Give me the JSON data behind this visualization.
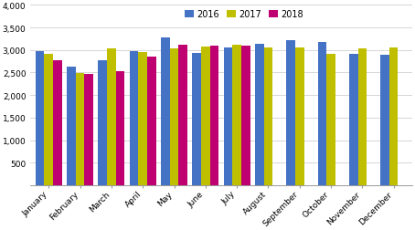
{
  "months": [
    "January",
    "February",
    "March",
    "April",
    "May",
    "June",
    "July",
    "August",
    "September",
    "October",
    "November",
    "December"
  ],
  "series": {
    "2016": [
      2980,
      2640,
      2780,
      2980,
      3270,
      2940,
      3060,
      3140,
      3220,
      3170,
      2910,
      2900
    ],
    "2017": [
      2910,
      2490,
      3030,
      2960,
      3030,
      3080,
      3120,
      3050,
      3050,
      2920,
      3030,
      3060
    ],
    "2018": [
      2770,
      2470,
      2540,
      2850,
      3110,
      3090,
      3090,
      0,
      0,
      0,
      0,
      0
    ]
  },
  "colors": {
    "2016": "#4472C4",
    "2017": "#BFBF00",
    "2018": "#BF0070"
  },
  "ylim": [
    0,
    4000
  ],
  "yticks": [
    0,
    500,
    1000,
    1500,
    2000,
    2500,
    3000,
    3500,
    4000
  ],
  "ytick_labels": [
    "",
    "500",
    "1,000",
    "1,500",
    "2,000",
    "2,500",
    "3,000",
    "3,500",
    "4,000"
  ],
  "n_2018_months": 7,
  "bar_width": 0.28,
  "fig_width": 4.54,
  "fig_height": 2.53,
  "dpi": 100
}
